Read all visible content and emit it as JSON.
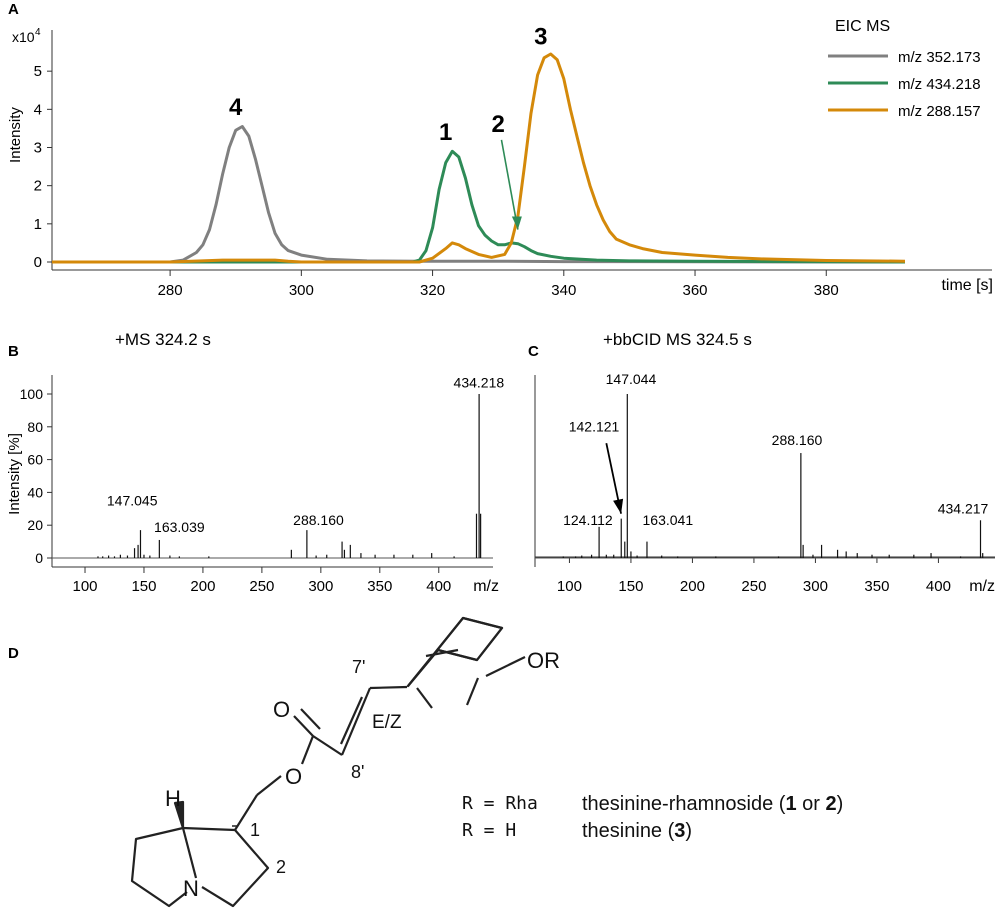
{
  "panels": {
    "A": "A",
    "B": "B",
    "C": "C",
    "D": "D"
  },
  "chart_data": [
    {
      "panel": "A",
      "type": "line",
      "title": "",
      "xlabel": "time [s]",
      "ylabel": "Intensity",
      "y_multiplier": "x10",
      "y_multiplier_exp": "4",
      "xlim": [
        262,
        392
      ],
      "ylim": [
        0,
        6
      ],
      "xticks": [
        280,
        300,
        320,
        340,
        360,
        380
      ],
      "yticks": [
        0,
        1,
        2,
        3,
        4,
        5
      ],
      "legend_title": "EIC MS",
      "legend_position": "top-right",
      "series": [
        {
          "name": "m/z 352.173",
          "color": "#808080",
          "x": [
            262,
            280,
            282,
            284,
            285,
            286,
            287,
            288,
            289,
            290,
            291,
            292,
            293,
            294,
            295,
            296,
            297,
            298,
            300,
            304,
            310,
            318,
            325,
            330,
            340,
            392
          ],
          "y": [
            0,
            0,
            0.05,
            0.25,
            0.45,
            0.85,
            1.5,
            2.3,
            3.0,
            3.45,
            3.55,
            3.3,
            2.7,
            2.0,
            1.3,
            0.75,
            0.45,
            0.3,
            0.18,
            0.07,
            0.03,
            0.02,
            0.02,
            0.02,
            0.01,
            0
          ]
        },
        {
          "name": "m/z 434.218",
          "color": "#2e8b57",
          "x": [
            262,
            317,
            318,
            319,
            320,
            321,
            322,
            323,
            324,
            325,
            326,
            327,
            328,
            329,
            330,
            331,
            332,
            333,
            334,
            335,
            336,
            338,
            340,
            345,
            350,
            360,
            392
          ],
          "y": [
            0,
            0,
            0.05,
            0.3,
            0.9,
            1.9,
            2.6,
            2.9,
            2.75,
            2.2,
            1.5,
            0.95,
            0.7,
            0.55,
            0.45,
            0.45,
            0.5,
            0.48,
            0.4,
            0.3,
            0.22,
            0.15,
            0.1,
            0.05,
            0.03,
            0.02,
            0
          ]
        },
        {
          "name": "m/z 288.157",
          "color": "#d4890a",
          "x": [
            262,
            280,
            288,
            296,
            298,
            300,
            318,
            320,
            322,
            323,
            324,
            325,
            327,
            329,
            331,
            332,
            333,
            334,
            335,
            336,
            337,
            338,
            339,
            340,
            341,
            342,
            343,
            344,
            345,
            346,
            347,
            348,
            350,
            352,
            355,
            360,
            365,
            370,
            380,
            392
          ],
          "y": [
            0,
            0,
            0.05,
            0.05,
            0.02,
            0,
            0,
            0.1,
            0.35,
            0.5,
            0.45,
            0.35,
            0.2,
            0.12,
            0.2,
            0.5,
            1.2,
            2.5,
            3.9,
            4.9,
            5.35,
            5.45,
            5.3,
            4.8,
            4.0,
            3.3,
            2.6,
            2.0,
            1.5,
            1.1,
            0.8,
            0.6,
            0.45,
            0.35,
            0.25,
            0.18,
            0.12,
            0.08,
            0.04,
            0.02
          ]
        }
      ],
      "annotations": [
        {
          "label": "4",
          "x": 290,
          "y": 3.85
        },
        {
          "label": "1",
          "x": 322,
          "y": 3.2
        },
        {
          "label": "2",
          "x": 330,
          "y": 3.4
        },
        {
          "label": "3",
          "x": 336.5,
          "y": 5.7
        }
      ],
      "arrow": {
        "from": [
          330.5,
          3.2
        ],
        "to": [
          333,
          0.85
        ],
        "color": "#2e8b57"
      }
    },
    {
      "panel": "B",
      "type": "bar",
      "title": "+MS 324.2 s",
      "xlabel": "m/z",
      "ylabel": "Intensity [%]",
      "xlim": [
        72,
        446
      ],
      "ylim": [
        -5,
        112
      ],
      "xticks": [
        100,
        150,
        200,
        250,
        300,
        350,
        400
      ],
      "yticks": [
        0,
        20,
        40,
        60,
        80,
        100
      ],
      "peaks": [
        [
          111,
          1
        ],
        [
          115,
          1
        ],
        [
          120,
          1.5
        ],
        [
          125,
          1
        ],
        [
          130,
          2
        ],
        [
          136,
          1.5
        ],
        [
          142,
          6
        ],
        [
          145,
          8
        ],
        [
          147.045,
          17
        ],
        [
          150,
          2
        ],
        [
          155,
          1.5
        ],
        [
          163.039,
          11
        ],
        [
          172,
          1.5
        ],
        [
          180,
          1
        ],
        [
          205,
          1
        ],
        [
          275,
          5
        ],
        [
          288.16,
          17
        ],
        [
          296,
          1.5
        ],
        [
          305,
          2
        ],
        [
          318,
          10
        ],
        [
          320,
          5
        ],
        [
          325,
          8
        ],
        [
          334,
          3
        ],
        [
          346,
          2
        ],
        [
          362,
          2
        ],
        [
          378,
          2
        ],
        [
          394,
          3
        ],
        [
          413,
          1
        ],
        [
          432,
          27
        ],
        [
          434.218,
          100
        ],
        [
          435.5,
          27
        ]
      ],
      "labels": [
        {
          "text": "147.045",
          "x": 140,
          "y": 32
        },
        {
          "text": "163.039",
          "x": 180,
          "y": 16
        },
        {
          "text": "288.160",
          "x": 298,
          "y": 20
        },
        {
          "text": "434.218",
          "x": 434,
          "y": 104
        }
      ]
    },
    {
      "panel": "C",
      "type": "bar",
      "title": "+bbCID MS 324.5 s",
      "xlabel": "m/z",
      "ylabel": "",
      "xlim": [
        72,
        446
      ],
      "ylim": [
        -5,
        112
      ],
      "xticks": [
        100,
        150,
        200,
        250,
        300,
        350,
        400
      ],
      "yticks": [],
      "peaks": [
        [
          95,
          1
        ],
        [
          105,
          1
        ],
        [
          110,
          1.5
        ],
        [
          118,
          2
        ],
        [
          124.112,
          19
        ],
        [
          130,
          2
        ],
        [
          136,
          2
        ],
        [
          142.121,
          24
        ],
        [
          145,
          10
        ],
        [
          147.044,
          100
        ],
        [
          150,
          4
        ],
        [
          155,
          1.5
        ],
        [
          163.041,
          10
        ],
        [
          175,
          1.5
        ],
        [
          188,
          1
        ],
        [
          219,
          1
        ],
        [
          270,
          1
        ],
        [
          288.16,
          64
        ],
        [
          290,
          8
        ],
        [
          298,
          2
        ],
        [
          305,
          8
        ],
        [
          318,
          5
        ],
        [
          325,
          4
        ],
        [
          334,
          3
        ],
        [
          346,
          2
        ],
        [
          360,
          2
        ],
        [
          380,
          2
        ],
        [
          394,
          3
        ],
        [
          418,
          1
        ],
        [
          434.217,
          23
        ],
        [
          436,
          3
        ]
      ],
      "labels": [
        {
          "text": "124.112",
          "x": 115,
          "y": 20
        },
        {
          "text": "142.121",
          "x": 120,
          "y": 77
        },
        {
          "text": "147.044",
          "x": 150,
          "y": 106
        },
        {
          "text": "163.041",
          "x": 180,
          "y": 20
        },
        {
          "text": "288.160",
          "x": 285,
          "y": 69
        },
        {
          "text": "434.217",
          "x": 420,
          "y": 27
        }
      ],
      "arrow": {
        "from": [
          130,
          70
        ],
        "to": [
          142,
          27
        ],
        "color": "#000000"
      }
    }
  ],
  "structure": {
    "atoms": {
      "o_carbonyl": "O",
      "o_ester": "O",
      "n": "N",
      "h": "H",
      "or_group": "OR"
    },
    "labels": {
      "c7": "7'",
      "c8": "8'",
      "ez": "E/Z",
      "c1": "1",
      "c2": "2"
    },
    "legend": [
      {
        "r": "R = Rha",
        "name": "thesinine-rhamnoside (",
        "c1": "1",
        "or": " or ",
        "c2": "2",
        "close": ")"
      },
      {
        "r": "R = H",
        "name": "thesinine (",
        "c1": "3",
        "close": ")"
      }
    ]
  }
}
